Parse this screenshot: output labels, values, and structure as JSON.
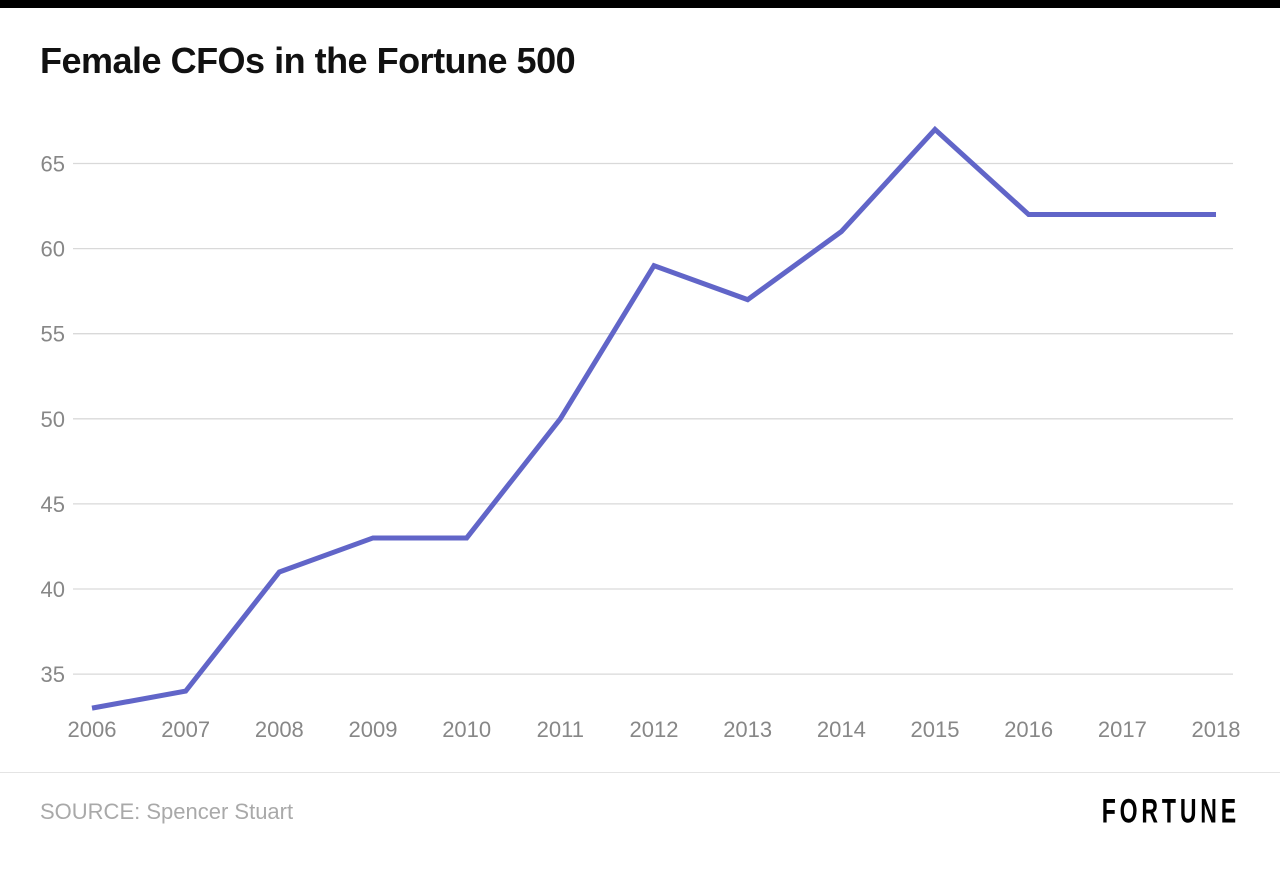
{
  "chart": {
    "title": "Female CFOs in the Fortune 500",
    "source_label": "SOURCE: Spencer Stuart",
    "brand": "FORTUNE"
  },
  "chart_data": {
    "type": "line",
    "title": "Female CFOs in the Fortune 500",
    "series_name": "Female CFOs",
    "x": [
      2006,
      2007,
      2008,
      2009,
      2010,
      2011,
      2012,
      2013,
      2014,
      2015,
      2016,
      2017,
      2018
    ],
    "values": [
      33,
      34,
      41,
      43,
      43,
      50,
      59,
      57,
      61,
      67,
      62,
      62,
      62
    ],
    "xlabel": "",
    "ylabel": "",
    "ylim": [
      32,
      68
    ],
    "yticks": [
      35,
      40,
      45,
      50,
      55,
      60,
      65
    ],
    "grid": true,
    "legend": false,
    "line_color": "#6165c8",
    "gridline_color": "#d9d9d9",
    "tick_label_color": "#878787",
    "accent_bar_color": "#000000",
    "source": "SOURCE: Spencer Stuart",
    "brand": "FORTUNE"
  }
}
